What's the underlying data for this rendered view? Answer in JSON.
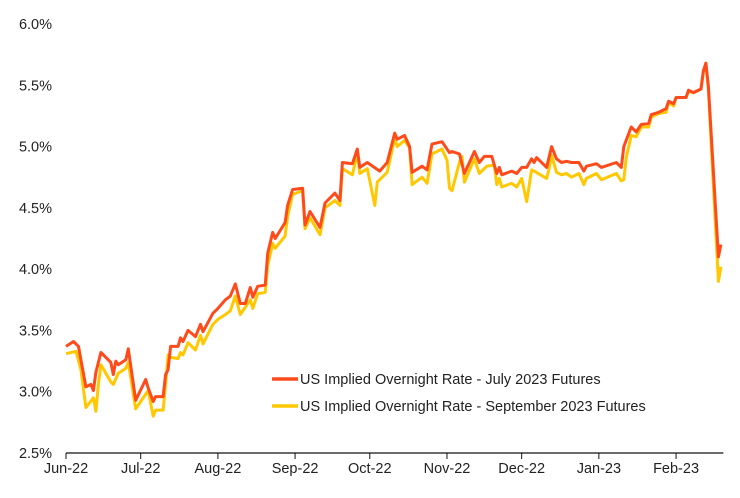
{
  "chart_data": {
    "type": "line",
    "title": "",
    "xlabel": "",
    "ylabel": "",
    "ylim": [
      2.5,
      6.0
    ],
    "xlim": [
      "2022-06-01",
      "2023-02-20"
    ],
    "y_ticks": [
      "2.5%",
      "3.0%",
      "3.5%",
      "4.0%",
      "4.5%",
      "5.0%",
      "5.5%",
      "6.0%"
    ],
    "y_tick_values": [
      2.5,
      3.0,
      3.5,
      4.0,
      4.5,
      5.0,
      5.5,
      6.0
    ],
    "x_ticks": [
      "Jun-22",
      "Jul-22",
      "Aug-22",
      "Sep-22",
      "Oct-22",
      "Nov-22",
      "Dec-22",
      "Jan-23",
      "Feb-23"
    ],
    "x_tick_dates": [
      "2022-06-01",
      "2022-07-01",
      "2022-08-01",
      "2022-09-01",
      "2022-10-01",
      "2022-11-01",
      "2022-12-01",
      "2023-01-01",
      "2023-02-01"
    ],
    "grid": false,
    "legend_position": "bottom-right",
    "series": [
      {
        "name": "US Implied Overnight Rate - July 2023 Futures",
        "color": "#FF4A1C",
        "points": [
          [
            "2022-06-01",
            3.37
          ],
          [
            "2022-06-04",
            3.41
          ],
          [
            "2022-06-06",
            3.37
          ],
          [
            "2022-06-07",
            3.26
          ],
          [
            "2022-06-09",
            3.04
          ],
          [
            "2022-06-11",
            3.06
          ],
          [
            "2022-06-12",
            3.01
          ],
          [
            "2022-06-13",
            3.16
          ],
          [
            "2022-06-15",
            3.32
          ],
          [
            "2022-06-19",
            3.24
          ],
          [
            "2022-06-20",
            3.14
          ],
          [
            "2022-06-21",
            3.25
          ],
          [
            "2022-06-22",
            3.22
          ],
          [
            "2022-06-25",
            3.26
          ],
          [
            "2022-06-26",
            3.35
          ],
          [
            "2022-06-29",
            2.93
          ],
          [
            "2022-07-03",
            3.1
          ],
          [
            "2022-07-04",
            3.03
          ],
          [
            "2022-07-06",
            2.92
          ],
          [
            "2022-07-07",
            2.96
          ],
          [
            "2022-07-10",
            2.96
          ],
          [
            "2022-07-11",
            3.14
          ],
          [
            "2022-07-12",
            3.18
          ],
          [
            "2022-07-13",
            3.37
          ],
          [
            "2022-07-16",
            3.37
          ],
          [
            "2022-07-17",
            3.44
          ],
          [
            "2022-07-18",
            3.41
          ],
          [
            "2022-07-20",
            3.5
          ],
          [
            "2022-07-23",
            3.45
          ],
          [
            "2022-07-25",
            3.55
          ],
          [
            "2022-07-26",
            3.49
          ],
          [
            "2022-07-30",
            3.64
          ],
          [
            "2022-08-01",
            3.68
          ],
          [
            "2022-08-04",
            3.75
          ],
          [
            "2022-08-06",
            3.78
          ],
          [
            "2022-08-08",
            3.88
          ],
          [
            "2022-08-10",
            3.72
          ],
          [
            "2022-08-12",
            3.72
          ],
          [
            "2022-08-14",
            3.85
          ],
          [
            "2022-08-15",
            3.77
          ],
          [
            "2022-08-17",
            3.86
          ],
          [
            "2022-08-20",
            3.87
          ],
          [
            "2022-08-21",
            4.13
          ],
          [
            "2022-08-23",
            4.3
          ],
          [
            "2022-08-24",
            4.25
          ],
          [
            "2022-08-28",
            4.38
          ],
          [
            "2022-08-29",
            4.52
          ],
          [
            "2022-08-31",
            4.65
          ],
          [
            "2022-09-04",
            4.66
          ],
          [
            "2022-09-05",
            4.36
          ],
          [
            "2022-09-07",
            4.47
          ],
          [
            "2022-09-11",
            4.34
          ],
          [
            "2022-09-13",
            4.54
          ],
          [
            "2022-09-17",
            4.62
          ],
          [
            "2022-09-19",
            4.56
          ],
          [
            "2022-09-20",
            4.87
          ],
          [
            "2022-09-24",
            4.86
          ],
          [
            "2022-09-26",
            4.98
          ],
          [
            "2022-09-27",
            4.83
          ],
          [
            "2022-09-30",
            4.87
          ],
          [
            "2022-10-05",
            4.8
          ],
          [
            "2022-10-08",
            4.87
          ],
          [
            "2022-10-11",
            5.11
          ],
          [
            "2022-10-12",
            5.06
          ],
          [
            "2022-10-15",
            5.09
          ],
          [
            "2022-10-17",
            5.0
          ],
          [
            "2022-10-18",
            4.79
          ],
          [
            "2022-10-22",
            4.84
          ],
          [
            "2022-10-24",
            4.81
          ],
          [
            "2022-10-26",
            5.02
          ],
          [
            "2022-10-30",
            5.04
          ],
          [
            "2022-11-02",
            4.95
          ],
          [
            "2022-11-03",
            4.96
          ],
          [
            "2022-11-06",
            4.94
          ],
          [
            "2022-11-08",
            4.78
          ],
          [
            "2022-11-12",
            4.96
          ],
          [
            "2022-11-14",
            4.87
          ],
          [
            "2022-11-16",
            4.92
          ],
          [
            "2022-11-19",
            4.92
          ],
          [
            "2022-11-21",
            4.78
          ],
          [
            "2022-11-22",
            4.83
          ],
          [
            "2022-11-23",
            4.77
          ],
          [
            "2022-11-27",
            4.8
          ],
          [
            "2022-11-29",
            4.78
          ],
          [
            "2022-12-01",
            4.83
          ],
          [
            "2022-12-03",
            4.83
          ],
          [
            "2022-12-05",
            4.9
          ],
          [
            "2022-12-06",
            4.87
          ],
          [
            "2022-12-07",
            4.91
          ],
          [
            "2022-12-11",
            4.83
          ],
          [
            "2022-12-13",
            5.0
          ],
          [
            "2022-12-15",
            4.9
          ],
          [
            "2022-12-17",
            4.87
          ],
          [
            "2022-12-19",
            4.88
          ],
          [
            "2022-12-21",
            4.87
          ],
          [
            "2022-12-24",
            4.87
          ],
          [
            "2022-12-26",
            4.8
          ],
          [
            "2022-12-27",
            4.84
          ],
          [
            "2022-12-31",
            4.86
          ],
          [
            "2023-01-02",
            4.83
          ],
          [
            "2023-01-08",
            4.87
          ],
          [
            "2023-01-10",
            4.83
          ],
          [
            "2023-01-11",
            5.0
          ],
          [
            "2023-01-14",
            5.16
          ],
          [
            "2023-01-16",
            5.12
          ],
          [
            "2023-01-18",
            5.18
          ],
          [
            "2023-01-21",
            5.19
          ],
          [
            "2023-01-22",
            5.26
          ],
          [
            "2023-01-25",
            5.28
          ],
          [
            "2023-01-28",
            5.31
          ],
          [
            "2023-01-29",
            5.37
          ],
          [
            "2023-01-31",
            5.35
          ],
          [
            "2023-02-01",
            5.4
          ],
          [
            "2023-02-05",
            5.4
          ],
          [
            "2023-02-06",
            5.46
          ],
          [
            "2023-02-08",
            5.44
          ],
          [
            "2023-02-11",
            5.47
          ],
          [
            "2023-02-12",
            5.62
          ],
          [
            "2023-02-13",
            5.68
          ],
          [
            "2023-02-14",
            5.49
          ],
          [
            "2023-02-18",
            4.1
          ],
          [
            "2023-02-19",
            4.2
          ]
        ]
      },
      {
        "name": "US Implied Overnight Rate - September 2023 Futures",
        "color": "#FFC800",
        "points": [
          [
            "2022-06-01",
            3.31
          ],
          [
            "2022-06-05",
            3.33
          ],
          [
            "2022-06-07",
            3.18
          ],
          [
            "2022-06-09",
            2.87
          ],
          [
            "2022-06-12",
            2.95
          ],
          [
            "2022-06-13",
            2.84
          ],
          [
            "2022-06-14",
            3.06
          ],
          [
            "2022-06-15",
            3.22
          ],
          [
            "2022-06-19",
            3.08
          ],
          [
            "2022-06-20",
            3.06
          ],
          [
            "2022-06-22",
            3.15
          ],
          [
            "2022-06-25",
            3.19
          ],
          [
            "2022-06-26",
            3.24
          ],
          [
            "2022-06-29",
            2.86
          ],
          [
            "2022-07-04",
            3.01
          ],
          [
            "2022-07-06",
            2.8
          ],
          [
            "2022-07-07",
            2.85
          ],
          [
            "2022-07-10",
            2.85
          ],
          [
            "2022-07-11",
            3.06
          ],
          [
            "2022-07-12",
            3.3
          ],
          [
            "2022-07-13",
            3.28
          ],
          [
            "2022-07-16",
            3.27
          ],
          [
            "2022-07-17",
            3.32
          ],
          [
            "2022-07-18",
            3.3
          ],
          [
            "2022-07-20",
            3.4
          ],
          [
            "2022-07-23",
            3.34
          ],
          [
            "2022-07-25",
            3.46
          ],
          [
            "2022-07-26",
            3.39
          ],
          [
            "2022-07-30",
            3.55
          ],
          [
            "2022-08-01",
            3.59
          ],
          [
            "2022-08-04",
            3.63
          ],
          [
            "2022-08-06",
            3.66
          ],
          [
            "2022-08-08",
            3.78
          ],
          [
            "2022-08-10",
            3.63
          ],
          [
            "2022-08-12",
            3.69
          ],
          [
            "2022-08-14",
            3.75
          ],
          [
            "2022-08-15",
            3.68
          ],
          [
            "2022-08-17",
            3.8
          ],
          [
            "2022-08-20",
            3.81
          ],
          [
            "2022-08-21",
            4.03
          ],
          [
            "2022-08-23",
            4.21
          ],
          [
            "2022-08-24",
            4.17
          ],
          [
            "2022-08-28",
            4.27
          ],
          [
            "2022-08-29",
            4.43
          ],
          [
            "2022-08-31",
            4.61
          ],
          [
            "2022-09-04",
            4.64
          ],
          [
            "2022-09-05",
            4.33
          ],
          [
            "2022-09-07",
            4.42
          ],
          [
            "2022-09-11",
            4.28
          ],
          [
            "2022-09-13",
            4.5
          ],
          [
            "2022-09-17",
            4.56
          ],
          [
            "2022-09-19",
            4.52
          ],
          [
            "2022-09-20",
            4.82
          ],
          [
            "2022-09-24",
            4.77
          ],
          [
            "2022-09-26",
            4.95
          ],
          [
            "2022-09-27",
            4.78
          ],
          [
            "2022-09-30",
            4.82
          ],
          [
            "2022-10-03",
            4.52
          ],
          [
            "2022-10-04",
            4.71
          ],
          [
            "2022-10-08",
            4.79
          ],
          [
            "2022-10-11",
            5.07
          ],
          [
            "2022-10-12",
            5.0
          ],
          [
            "2022-10-15",
            5.05
          ],
          [
            "2022-10-17",
            4.99
          ],
          [
            "2022-10-18",
            4.69
          ],
          [
            "2022-10-22",
            4.75
          ],
          [
            "2022-10-24",
            4.7
          ],
          [
            "2022-10-26",
            4.94
          ],
          [
            "2022-10-30",
            4.98
          ],
          [
            "2022-11-01",
            4.89
          ],
          [
            "2022-11-02",
            4.66
          ],
          [
            "2022-11-03",
            4.64
          ],
          [
            "2022-11-06",
            4.87
          ],
          [
            "2022-11-07",
            4.92
          ],
          [
            "2022-11-08",
            4.71
          ],
          [
            "2022-11-12",
            4.9
          ],
          [
            "2022-11-14",
            4.78
          ],
          [
            "2022-11-17",
            4.84
          ],
          [
            "2022-11-20",
            4.85
          ],
          [
            "2022-11-21",
            4.69
          ],
          [
            "2022-11-22",
            4.74
          ],
          [
            "2022-11-23",
            4.67
          ],
          [
            "2022-11-27",
            4.7
          ],
          [
            "2022-11-29",
            4.67
          ],
          [
            "2022-12-01",
            4.74
          ],
          [
            "2022-12-03",
            4.55
          ],
          [
            "2022-12-05",
            4.81
          ],
          [
            "2022-12-06",
            4.8
          ],
          [
            "2022-12-11",
            4.74
          ],
          [
            "2022-12-12",
            4.82
          ],
          [
            "2022-12-13",
            4.93
          ],
          [
            "2022-12-15",
            4.79
          ],
          [
            "2022-12-17",
            4.77
          ],
          [
            "2022-12-19",
            4.78
          ],
          [
            "2022-12-21",
            4.75
          ],
          [
            "2022-12-24",
            4.78
          ],
          [
            "2022-12-26",
            4.69
          ],
          [
            "2022-12-27",
            4.74
          ],
          [
            "2022-12-31",
            4.78
          ],
          [
            "2023-01-02",
            4.73
          ],
          [
            "2023-01-08",
            4.78
          ],
          [
            "2023-01-10",
            4.72
          ],
          [
            "2023-01-11",
            4.73
          ],
          [
            "2023-01-12",
            4.91
          ],
          [
            "2023-01-14",
            5.09
          ],
          [
            "2023-01-16",
            5.08
          ],
          [
            "2023-01-18",
            5.16
          ],
          [
            "2023-01-21",
            5.16
          ],
          [
            "2023-01-22",
            5.24
          ],
          [
            "2023-01-25",
            5.27
          ],
          [
            "2023-01-28",
            5.28
          ],
          [
            "2023-01-29",
            5.36
          ],
          [
            "2023-01-31",
            5.33
          ],
          [
            "2023-02-01",
            5.4
          ],
          [
            "2023-02-05",
            5.4
          ],
          [
            "2023-02-06",
            5.45
          ],
          [
            "2023-02-08",
            5.44
          ],
          [
            "2023-02-11",
            5.47
          ],
          [
            "2023-02-12",
            5.61
          ],
          [
            "2023-02-13",
            5.68
          ],
          [
            "2023-02-14",
            5.46
          ],
          [
            "2023-02-18",
            3.9
          ],
          [
            "2023-02-19",
            4.02
          ]
        ]
      }
    ]
  }
}
